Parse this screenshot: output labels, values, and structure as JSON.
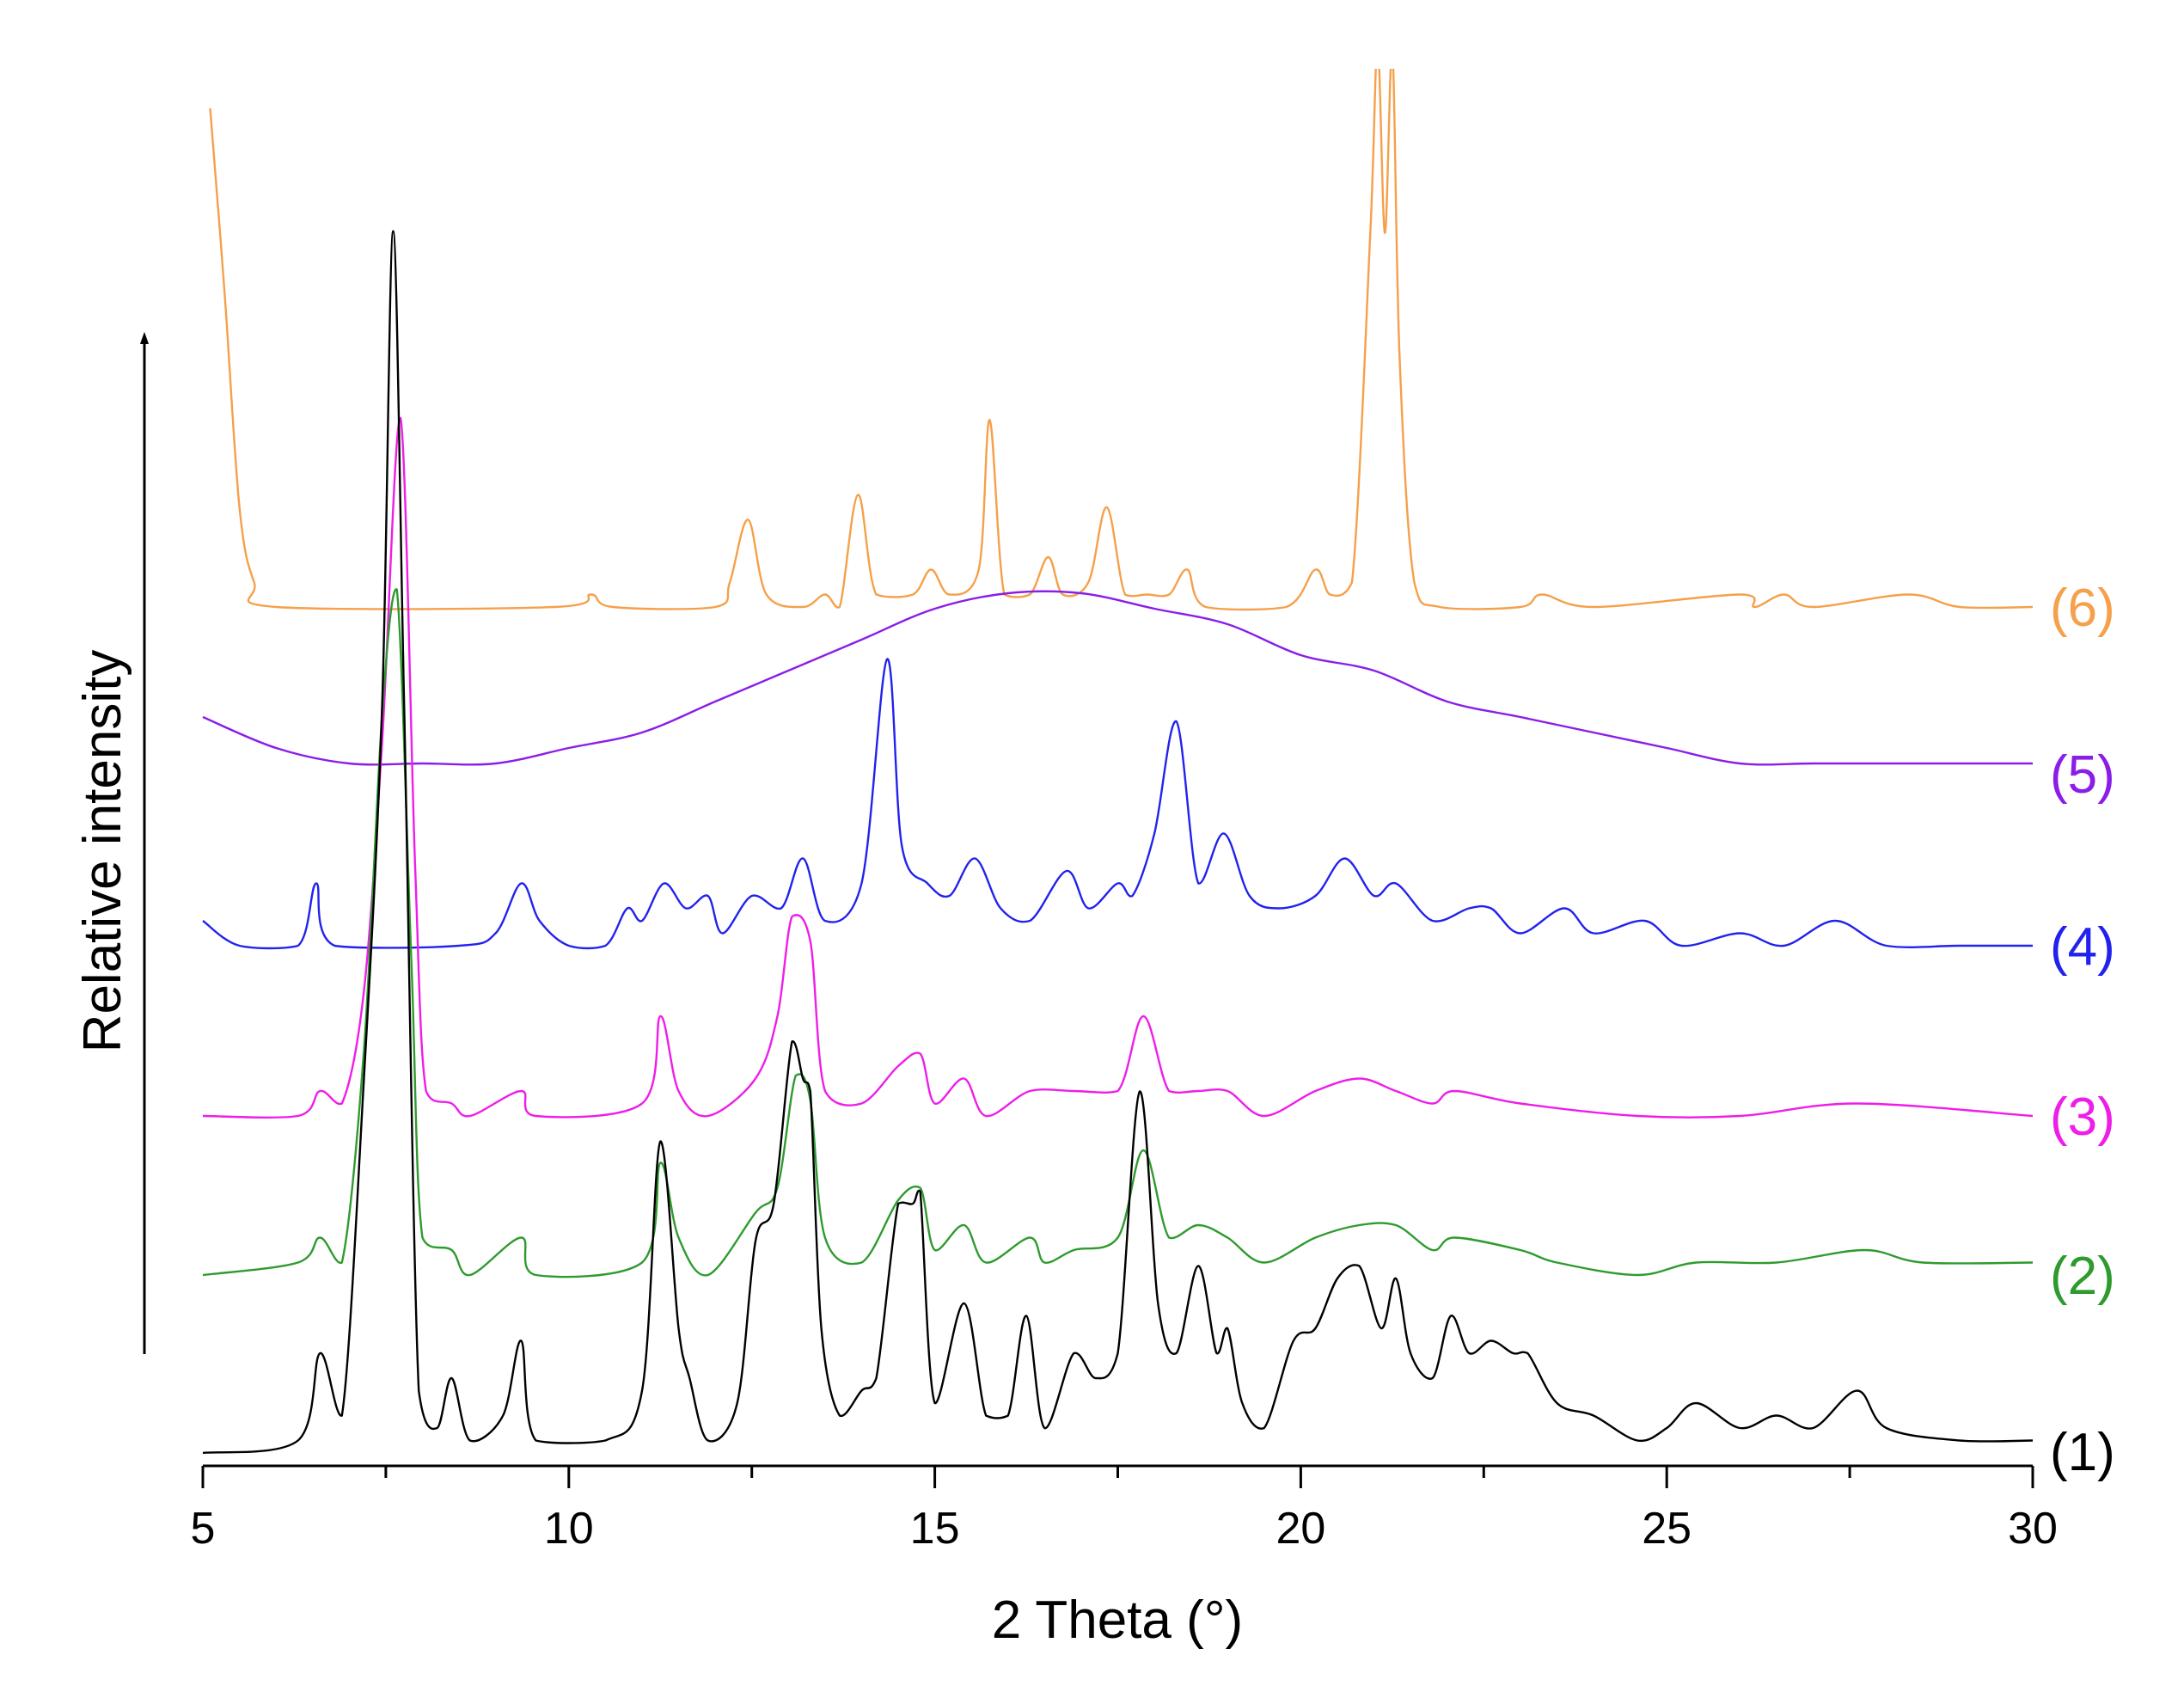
{
  "chart_data": {
    "type": "line",
    "xlabel": "2 Theta (°)",
    "ylabel": "Relative intensity",
    "xlim": [
      5,
      30
    ],
    "x_ticks": [
      5,
      10,
      15,
      20,
      25,
      30
    ],
    "x_tick_labels": [
      "5",
      "10",
      "15",
      "20",
      "25",
      "30"
    ],
    "y_scale": "arbitrary units, stacked offsets",
    "grid": false,
    "legend": "labels at right end of each curve",
    "series": [
      {
        "name": "(1)",
        "color": "#000000",
        "points": [
          [
            5,
            0.0
          ],
          [
            6.3,
            0.01
          ],
          [
            6.6,
            0.08
          ],
          [
            6.9,
            0.03
          ],
          [
            7.2,
            0.3
          ],
          [
            7.45,
            0.6
          ],
          [
            7.6,
            0.98
          ],
          [
            7.75,
            0.6
          ],
          [
            7.95,
            0.05
          ],
          [
            8.2,
            0.02
          ],
          [
            8.4,
            0.06
          ],
          [
            8.65,
            0.01
          ],
          [
            9.1,
            0.03
          ],
          [
            9.35,
            0.09
          ],
          [
            9.55,
            0.01
          ],
          [
            10.5,
            0.01
          ],
          [
            11,
            0.05
          ],
          [
            11.25,
            0.25
          ],
          [
            11.5,
            0.1
          ],
          [
            11.65,
            0.06
          ],
          [
            11.9,
            0.01
          ],
          [
            12.3,
            0.04
          ],
          [
            12.55,
            0.17
          ],
          [
            12.8,
            0.2
          ],
          [
            13.05,
            0.33
          ],
          [
            13.2,
            0.3
          ],
          [
            13.3,
            0.29
          ],
          [
            13.45,
            0.1
          ],
          [
            13.7,
            0.03
          ],
          [
            14,
            0.05
          ],
          [
            14.2,
            0.06
          ],
          [
            14.5,
            0.2
          ],
          [
            14.7,
            0.2
          ],
          [
            14.8,
            0.21
          ],
          [
            15,
            0.04
          ],
          [
            15.4,
            0.12
          ],
          [
            15.7,
            0.03
          ],
          [
            16,
            0.03
          ],
          [
            16.25,
            0.11
          ],
          [
            16.5,
            0.02
          ],
          [
            16.9,
            0.08
          ],
          [
            17.2,
            0.06
          ],
          [
            17.5,
            0.08
          ],
          [
            17.8,
            0.29
          ],
          [
            18.05,
            0.12
          ],
          [
            18.3,
            0.08
          ],
          [
            18.6,
            0.15
          ],
          [
            18.85,
            0.08
          ],
          [
            19,
            0.1
          ],
          [
            19.2,
            0.04
          ],
          [
            19.5,
            0.02
          ],
          [
            19.9,
            0.09
          ],
          [
            20.2,
            0.1
          ],
          [
            20.5,
            0.14
          ],
          [
            20.8,
            0.15
          ],
          [
            21.1,
            0.1
          ],
          [
            21.3,
            0.14
          ],
          [
            21.5,
            0.08
          ],
          [
            21.8,
            0.06
          ],
          [
            22.05,
            0.11
          ],
          [
            22.3,
            0.08
          ],
          [
            22.6,
            0.09
          ],
          [
            22.9,
            0.08
          ],
          [
            23.1,
            0.08
          ],
          [
            23.5,
            0.04
          ],
          [
            24,
            0.03
          ],
          [
            24.6,
            0.01
          ],
          [
            25,
            0.02
          ],
          [
            25.4,
            0.04
          ],
          [
            26,
            0.02
          ],
          [
            26.5,
            0.03
          ],
          [
            27,
            0.02
          ],
          [
            27.6,
            0.05
          ],
          [
            28,
            0.02
          ],
          [
            29,
            0.01
          ],
          [
            30,
            0.01
          ]
        ]
      },
      {
        "name": "(2)",
        "color": "#2e9b2e",
        "points": [
          [
            5,
            0.0
          ],
          [
            6.3,
            0.01
          ],
          [
            6.6,
            0.03
          ],
          [
            6.9,
            0.01
          ],
          [
            7.2,
            0.18
          ],
          [
            7.45,
            0.45
          ],
          [
            7.65,
            0.55
          ],
          [
            7.85,
            0.25
          ],
          [
            8.0,
            0.03
          ],
          [
            8.4,
            0.02
          ],
          [
            8.65,
            0.0
          ],
          [
            9.35,
            0.03
          ],
          [
            9.55,
            0.0
          ],
          [
            11,
            0.01
          ],
          [
            11.25,
            0.09
          ],
          [
            11.5,
            0.03
          ],
          [
            11.9,
            0.0
          ],
          [
            12.55,
            0.05
          ],
          [
            12.85,
            0.07
          ],
          [
            13.1,
            0.16
          ],
          [
            13.3,
            0.14
          ],
          [
            13.5,
            0.03
          ],
          [
            14,
            0.01
          ],
          [
            14.5,
            0.06
          ],
          [
            14.8,
            0.07
          ],
          [
            15,
            0.02
          ],
          [
            15.4,
            0.04
          ],
          [
            15.7,
            0.01
          ],
          [
            16.3,
            0.03
          ],
          [
            16.5,
            0.01
          ],
          [
            16.9,
            0.02
          ],
          [
            17.5,
            0.03
          ],
          [
            17.85,
            0.1
          ],
          [
            18.2,
            0.03
          ],
          [
            18.6,
            0.04
          ],
          [
            19,
            0.03
          ],
          [
            19.5,
            0.01
          ],
          [
            20.2,
            0.03
          ],
          [
            20.8,
            0.04
          ],
          [
            21.3,
            0.04
          ],
          [
            21.8,
            0.02
          ],
          [
            22.1,
            0.03
          ],
          [
            23,
            0.02
          ],
          [
            23.5,
            0.01
          ],
          [
            24.6,
            0.0
          ],
          [
            25.4,
            0.01
          ],
          [
            26.5,
            0.01
          ],
          [
            27.7,
            0.02
          ],
          [
            28.5,
            0.01
          ],
          [
            30,
            0.01
          ]
        ]
      },
      {
        "name": "(3)",
        "color": "#ee1ee8",
        "points": [
          [
            5,
            0.0
          ],
          [
            6.3,
            0.0
          ],
          [
            6.6,
            0.02
          ],
          [
            6.9,
            0.01
          ],
          [
            7.2,
            0.1
          ],
          [
            7.45,
            0.3
          ],
          [
            7.7,
            0.56
          ],
          [
            7.9,
            0.2
          ],
          [
            8.05,
            0.02
          ],
          [
            8.4,
            0.01
          ],
          [
            8.65,
            0.0
          ],
          [
            9.35,
            0.02
          ],
          [
            9.55,
            0.0
          ],
          [
            11,
            0.01
          ],
          [
            11.25,
            0.08
          ],
          [
            11.5,
            0.02
          ],
          [
            11.9,
            0.0
          ],
          [
            12.55,
            0.03
          ],
          [
            12.85,
            0.08
          ],
          [
            13.05,
            0.16
          ],
          [
            13.3,
            0.14
          ],
          [
            13.5,
            0.02
          ],
          [
            14,
            0.01
          ],
          [
            14.5,
            0.04
          ],
          [
            14.8,
            0.05
          ],
          [
            15,
            0.01
          ],
          [
            15.4,
            0.03
          ],
          [
            15.7,
            0.0
          ],
          [
            16.3,
            0.02
          ],
          [
            16.9,
            0.02
          ],
          [
            17.5,
            0.02
          ],
          [
            17.85,
            0.08
          ],
          [
            18.2,
            0.02
          ],
          [
            18.6,
            0.02
          ],
          [
            19,
            0.02
          ],
          [
            19.5,
            0.0
          ],
          [
            20.2,
            0.02
          ],
          [
            20.8,
            0.03
          ],
          [
            21.3,
            0.02
          ],
          [
            21.8,
            0.01
          ],
          [
            22.1,
            0.02
          ],
          [
            23,
            0.01
          ],
          [
            24.6,
            0.0
          ],
          [
            26,
            0.0
          ],
          [
            27.6,
            0.01
          ],
          [
            30,
            0.0
          ]
        ]
      },
      {
        "name": "(4)",
        "color": "#2222ee",
        "points": [
          [
            5,
            0.02
          ],
          [
            5.5,
            0.0
          ],
          [
            6.3,
            0.0
          ],
          [
            6.55,
            0.05
          ],
          [
            6.8,
            0.0
          ],
          [
            8.5,
            0.0
          ],
          [
            9.0,
            0.01
          ],
          [
            9.35,
            0.05
          ],
          [
            9.6,
            0.02
          ],
          [
            10,
            0.0
          ],
          [
            10.5,
            0.0
          ],
          [
            10.8,
            0.03
          ],
          [
            11.0,
            0.02
          ],
          [
            11.3,
            0.05
          ],
          [
            11.6,
            0.03
          ],
          [
            11.9,
            0.04
          ],
          [
            12.1,
            0.01
          ],
          [
            12.5,
            0.04
          ],
          [
            12.9,
            0.03
          ],
          [
            13.2,
            0.07
          ],
          [
            13.5,
            0.02
          ],
          [
            14,
            0.05
          ],
          [
            14.35,
            0.23
          ],
          [
            14.55,
            0.08
          ],
          [
            14.9,
            0.05
          ],
          [
            15.2,
            0.04
          ],
          [
            15.55,
            0.07
          ],
          [
            15.9,
            0.03
          ],
          [
            16.3,
            0.02
          ],
          [
            16.8,
            0.06
          ],
          [
            17.1,
            0.03
          ],
          [
            17.5,
            0.05
          ],
          [
            17.7,
            0.04
          ],
          [
            18.0,
            0.09
          ],
          [
            18.3,
            0.18
          ],
          [
            18.6,
            0.05
          ],
          [
            18.95,
            0.09
          ],
          [
            19.3,
            0.04
          ],
          [
            19.7,
            0.03
          ],
          [
            20.2,
            0.04
          ],
          [
            20.6,
            0.07
          ],
          [
            21.0,
            0.04
          ],
          [
            21.3,
            0.05
          ],
          [
            21.8,
            0.02
          ],
          [
            22.3,
            0.03
          ],
          [
            22.6,
            0.03
          ],
          [
            23,
            0.01
          ],
          [
            23.6,
            0.03
          ],
          [
            24,
            0.01
          ],
          [
            24.7,
            0.02
          ],
          [
            25.2,
            0.0
          ],
          [
            26,
            0.01
          ],
          [
            26.6,
            0.0
          ],
          [
            27.3,
            0.02
          ],
          [
            28,
            0.0
          ],
          [
            29,
            0.0
          ],
          [
            30,
            0.0
          ]
        ]
      },
      {
        "name": "(5)",
        "color": "#8a1ee8",
        "points": [
          [
            5,
            0.03
          ],
          [
            6,
            0.01
          ],
          [
            7,
            0.0
          ],
          [
            8,
            0.0
          ],
          [
            9,
            0.0
          ],
          [
            10,
            0.01
          ],
          [
            11,
            0.02
          ],
          [
            12,
            0.04
          ],
          [
            13,
            0.06
          ],
          [
            14,
            0.08
          ],
          [
            15,
            0.1
          ],
          [
            16,
            0.11
          ],
          [
            17,
            0.11
          ],
          [
            18,
            0.1
          ],
          [
            19,
            0.09
          ],
          [
            20,
            0.07
          ],
          [
            21,
            0.06
          ],
          [
            22,
            0.04
          ],
          [
            23,
            0.03
          ],
          [
            24,
            0.02
          ],
          [
            25,
            0.01
          ],
          [
            26,
            0.0
          ],
          [
            27,
            0.0
          ],
          [
            28,
            0.0
          ],
          [
            29,
            0.0
          ],
          [
            30,
            0.0
          ]
        ]
      },
      {
        "name": "(6)",
        "color": "#f5a04a",
        "points": [
          [
            5.1,
            0.4
          ],
          [
            5.3,
            0.25
          ],
          [
            5.5,
            0.08
          ],
          [
            5.7,
            0.02
          ],
          [
            6,
            0.0
          ],
          [
            9.8,
            0.0
          ],
          [
            10.3,
            0.01
          ],
          [
            10.6,
            0.0
          ],
          [
            12,
            0.0
          ],
          [
            12.2,
            0.02
          ],
          [
            12.45,
            0.07
          ],
          [
            12.7,
            0.01
          ],
          [
            13.2,
            0.0
          ],
          [
            13.5,
            0.01
          ],
          [
            13.7,
            0.0
          ],
          [
            13.95,
            0.09
          ],
          [
            14.2,
            0.01
          ],
          [
            14.7,
            0.01
          ],
          [
            14.95,
            0.03
          ],
          [
            15.2,
            0.01
          ],
          [
            15.6,
            0.03
          ],
          [
            15.75,
            0.15
          ],
          [
            15.95,
            0.01
          ],
          [
            16.3,
            0.01
          ],
          [
            16.55,
            0.04
          ],
          [
            16.75,
            0.01
          ],
          [
            17.1,
            0.02
          ],
          [
            17.35,
            0.08
          ],
          [
            17.6,
            0.01
          ],
          [
            17.9,
            0.01
          ],
          [
            18.2,
            0.01
          ],
          [
            18.45,
            0.03
          ],
          [
            18.7,
            0.0
          ],
          [
            19.8,
            0.0
          ],
          [
            20.2,
            0.03
          ],
          [
            20.4,
            0.01
          ],
          [
            20.7,
            0.02
          ],
          [
            20.95,
            0.3
          ],
          [
            21.05,
            0.45
          ],
          [
            21.15,
            0.3
          ],
          [
            21.25,
            0.45
          ],
          [
            21.35,
            0.2
          ],
          [
            21.55,
            0.02
          ],
          [
            21.9,
            0.0
          ],
          [
            23,
            0.0
          ],
          [
            23.3,
            0.01
          ],
          [
            24,
            0.0
          ],
          [
            26,
            0.01
          ],
          [
            26.2,
            0.0
          ],
          [
            26.6,
            0.01
          ],
          [
            27,
            0.0
          ],
          [
            28.3,
            0.01
          ],
          [
            29,
            0.0
          ],
          [
            30,
            0.0
          ]
        ]
      }
    ]
  }
}
